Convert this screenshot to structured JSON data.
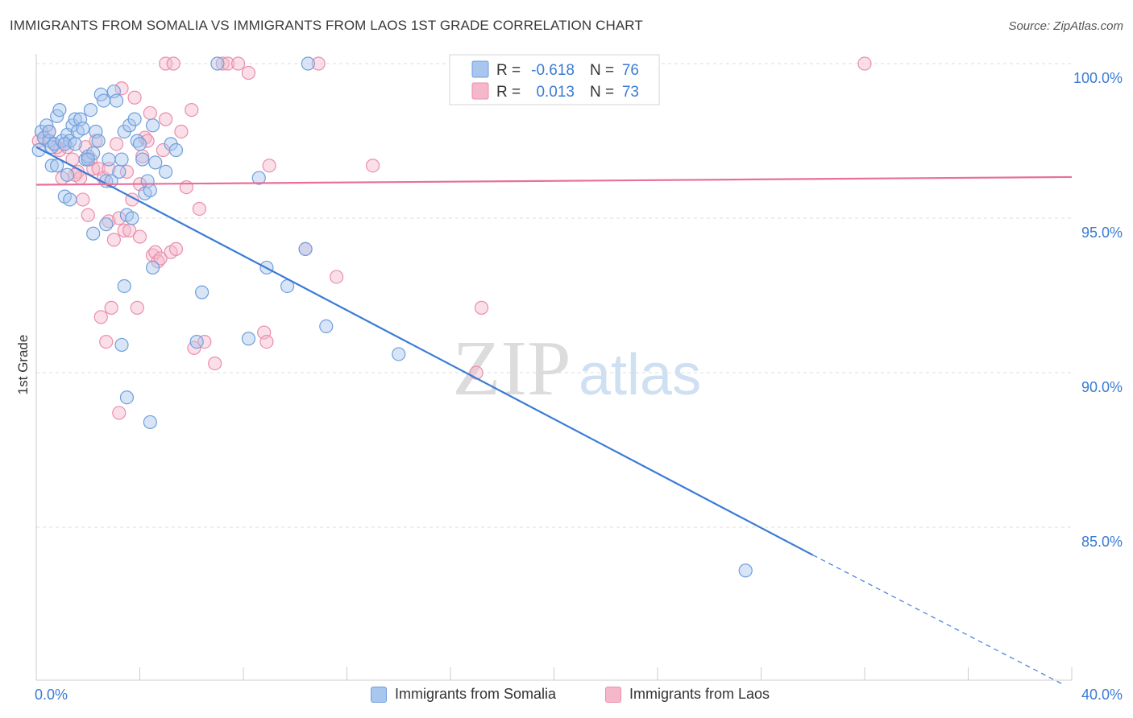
{
  "header": {
    "title": "IMMIGRANTS FROM SOMALIA VS IMMIGRANTS FROM LAOS 1ST GRADE CORRELATION CHART",
    "source": "Source: ZipAtlas.com"
  },
  "watermark": {
    "zip": "ZIP",
    "atlas": "atlas"
  },
  "colors": {
    "somalia_fill": "#a9c6ee",
    "somalia_stroke": "#6f9fdc",
    "somalia_line": "#3a7bd5",
    "laos_fill": "#f5b8cb",
    "laos_stroke": "#eb8eaa",
    "laos_line": "#e8709a",
    "value_blue": "#3a7bd5",
    "grid": "#dddddd"
  },
  "legend_stats": [
    {
      "r_label": "R =",
      "r_value": "-0.618",
      "n_label": "N =",
      "n_value": "76"
    },
    {
      "r_label": "R =",
      "r_value": "0.013",
      "n_label": "N =",
      "n_value": "73"
    }
  ],
  "legend_bottom": [
    "Immigrants from Somalia",
    "Immigrants from Laos"
  ],
  "chart_data": {
    "type": "scatter",
    "title": "IMMIGRANTS FROM SOMALIA VS IMMIGRANTS FROM LAOS 1ST GRADE CORRELATION CHART",
    "xlabel": "",
    "ylabel": "1st Grade",
    "xlim": [
      0,
      40
    ],
    "ylim": [
      80.0,
      100.9
    ],
    "x_tick_labels": [
      "0.0%",
      "40.0%"
    ],
    "y_ticks": [
      100,
      95,
      90,
      85
    ],
    "y_tick_labels": [
      "100.0%",
      "95.0%",
      "90.0%",
      "85.0%"
    ],
    "x_minor_ticks": [
      4,
      8,
      12,
      16,
      20,
      24,
      28,
      32,
      36,
      40
    ],
    "series": [
      {
        "name": "Immigrants from Somalia",
        "r": -0.618,
        "n": 76,
        "trend": {
          "x0": 0,
          "y0": 97.3,
          "x1": 30.0,
          "y1": 84.1,
          "dash_x1": 39.7,
          "dash_y1": 79.9
        },
        "points": [
          [
            0.1,
            97.2
          ],
          [
            0.2,
            97.8
          ],
          [
            0.3,
            97.6
          ],
          [
            0.4,
            98.0
          ],
          [
            0.5,
            97.5
          ],
          [
            0.6,
            97.3
          ],
          [
            0.7,
            97.4
          ],
          [
            0.8,
            98.3
          ],
          [
            0.9,
            98.5
          ],
          [
            0.6,
            96.7
          ],
          [
            0.8,
            96.7
          ],
          [
            1.0,
            97.5
          ],
          [
            1.2,
            97.7
          ],
          [
            1.3,
            97.5
          ],
          [
            1.4,
            98.0
          ],
          [
            1.5,
            98.2
          ],
          [
            1.6,
            97.8
          ],
          [
            1.7,
            98.2
          ],
          [
            1.8,
            97.9
          ],
          [
            1.9,
            96.9
          ],
          [
            2.0,
            97.0
          ],
          [
            2.1,
            98.5
          ],
          [
            2.2,
            97.1
          ],
          [
            2.3,
            97.8
          ],
          [
            2.4,
            97.5
          ],
          [
            2.5,
            99.0
          ],
          [
            2.6,
            98.8
          ],
          [
            2.7,
            96.2
          ],
          [
            2.8,
            96.9
          ],
          [
            2.9,
            96.2
          ],
          [
            3.0,
            99.1
          ],
          [
            3.1,
            98.8
          ],
          [
            3.2,
            96.5
          ],
          [
            3.3,
            96.9
          ],
          [
            3.4,
            97.8
          ],
          [
            3.5,
            95.1
          ],
          [
            3.6,
            98.0
          ],
          [
            3.7,
            95.0
          ],
          [
            3.8,
            98.2
          ],
          [
            3.9,
            97.5
          ],
          [
            4.0,
            97.4
          ],
          [
            4.1,
            96.9
          ],
          [
            4.2,
            95.8
          ],
          [
            4.3,
            96.2
          ],
          [
            4.4,
            95.9
          ],
          [
            4.5,
            98.0
          ],
          [
            4.6,
            96.8
          ],
          [
            5.0,
            96.5
          ],
          [
            5.2,
            97.4
          ],
          [
            5.4,
            97.2
          ],
          [
            1.1,
            95.7
          ],
          [
            1.2,
            96.4
          ],
          [
            1.3,
            95.6
          ],
          [
            2.2,
            94.5
          ],
          [
            2.7,
            94.8
          ],
          [
            3.3,
            90.9
          ],
          [
            3.4,
            92.8
          ],
          [
            3.5,
            89.2
          ],
          [
            4.4,
            88.4
          ],
          [
            4.5,
            93.4
          ],
          [
            6.2,
            91.0
          ],
          [
            6.4,
            92.6
          ],
          [
            8.2,
            91.1
          ],
          [
            8.9,
            93.4
          ],
          [
            9.7,
            92.8
          ],
          [
            10.4,
            94.0
          ],
          [
            11.2,
            91.5
          ],
          [
            14.0,
            90.6
          ],
          [
            27.4,
            83.6
          ],
          [
            8.6,
            96.3
          ],
          [
            7.0,
            100.0
          ],
          [
            10.5,
            100.0
          ],
          [
            1.1,
            97.4
          ],
          [
            1.5,
            97.4
          ],
          [
            0.5,
            97.8
          ],
          [
            2.0,
            96.9
          ]
        ]
      },
      {
        "name": "Immigrants from Laos",
        "r": 0.013,
        "n": 73,
        "trend": {
          "x0": 0,
          "y0": 96.08,
          "x1": 40,
          "y1": 96.33
        },
        "points": [
          [
            0.1,
            97.5
          ],
          [
            0.3,
            97.6
          ],
          [
            0.5,
            97.8
          ],
          [
            0.7,
            97.4
          ],
          [
            0.9,
            97.2
          ],
          [
            1.0,
            96.3
          ],
          [
            1.2,
            97.3
          ],
          [
            1.4,
            96.9
          ],
          [
            1.6,
            96.5
          ],
          [
            1.7,
            96.3
          ],
          [
            1.8,
            95.6
          ],
          [
            1.9,
            97.3
          ],
          [
            2.0,
            95.1
          ],
          [
            2.1,
            96.9
          ],
          [
            2.2,
            96.6
          ],
          [
            2.3,
            97.5
          ],
          [
            2.4,
            96.6
          ],
          [
            2.5,
            91.8
          ],
          [
            2.6,
            96.3
          ],
          [
            2.7,
            91.0
          ],
          [
            2.8,
            94.9
          ],
          [
            2.9,
            92.1
          ],
          [
            3.0,
            94.3
          ],
          [
            3.1,
            97.4
          ],
          [
            3.2,
            95.0
          ],
          [
            3.3,
            99.2
          ],
          [
            3.4,
            94.6
          ],
          [
            3.5,
            96.5
          ],
          [
            3.6,
            94.6
          ],
          [
            3.7,
            95.6
          ],
          [
            3.8,
            98.9
          ],
          [
            3.9,
            92.1
          ],
          [
            4.0,
            96.1
          ],
          [
            4.1,
            97.0
          ],
          [
            4.2,
            97.6
          ],
          [
            4.3,
            97.5
          ],
          [
            4.4,
            98.4
          ],
          [
            4.5,
            93.8
          ],
          [
            4.6,
            93.9
          ],
          [
            4.7,
            93.6
          ],
          [
            4.8,
            93.7
          ],
          [
            4.9,
            97.2
          ],
          [
            5.0,
            98.2
          ],
          [
            5.2,
            93.9
          ],
          [
            5.4,
            94.0
          ],
          [
            5.6,
            97.8
          ],
          [
            5.8,
            96.0
          ],
          [
            6.0,
            98.5
          ],
          [
            6.3,
            95.3
          ],
          [
            6.5,
            91.0
          ],
          [
            6.9,
            90.3
          ],
          [
            7.2,
            100.0
          ],
          [
            7.4,
            100.0
          ],
          [
            8.2,
            99.7
          ],
          [
            8.8,
            91.3
          ],
          [
            8.9,
            91.0
          ],
          [
            9.0,
            96.7
          ],
          [
            10.4,
            94.0
          ],
          [
            11.6,
            93.1
          ],
          [
            13.0,
            96.7
          ],
          [
            17.2,
            92.1
          ],
          [
            17.0,
            90.0
          ],
          [
            32.0,
            100.0
          ],
          [
            5.0,
            100.0
          ],
          [
            5.3,
            100.0
          ],
          [
            7.8,
            100.0
          ],
          [
            10.9,
            100.0
          ],
          [
            3.2,
            88.7
          ],
          [
            6.1,
            90.8
          ],
          [
            4.0,
            94.4
          ],
          [
            1.5,
            96.4
          ],
          [
            2.8,
            96.6
          ],
          [
            0.8,
            97.3
          ]
        ]
      }
    ]
  }
}
